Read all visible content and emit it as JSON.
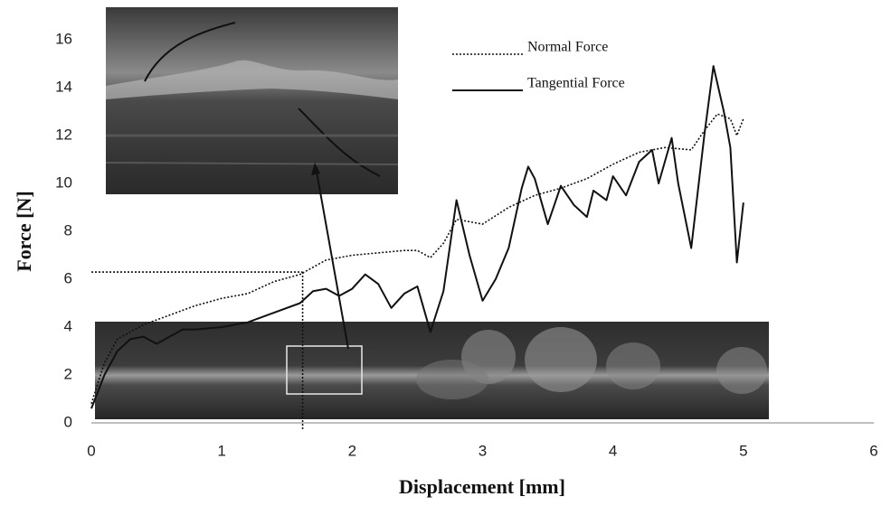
{
  "chart_data": {
    "type": "line",
    "x_label": "Displacement [mm]",
    "y_label": "Force [N]",
    "xlim": [
      0,
      6
    ],
    "ylim": [
      0,
      16
    ],
    "xticks": [
      0,
      1,
      2,
      3,
      4,
      5,
      6
    ],
    "yticks": [
      0,
      2,
      4,
      6,
      8,
      10,
      12,
      14,
      16
    ],
    "legend": "top-right",
    "reference_point": {
      "x": 1.62,
      "y": 6.3
    },
    "series": [
      {
        "name": "Normal Force",
        "color": "#111111",
        "style": "dotted",
        "x": [
          0,
          0.1,
          0.2,
          0.4,
          0.6,
          0.8,
          1.0,
          1.2,
          1.4,
          1.6,
          1.7,
          1.8,
          2.0,
          2.2,
          2.4,
          2.5,
          2.6,
          2.7,
          2.8,
          3.0,
          3.2,
          3.4,
          3.6,
          3.8,
          4.0,
          4.2,
          4.4,
          4.6,
          4.7,
          4.8,
          4.9,
          4.95,
          5.0
        ],
        "values": [
          0.8,
          2.5,
          3.5,
          4.1,
          4.5,
          4.9,
          5.2,
          5.4,
          5.9,
          6.2,
          6.5,
          6.8,
          7.0,
          7.1,
          7.2,
          7.2,
          6.9,
          7.5,
          8.5,
          8.3,
          9.0,
          9.5,
          9.8,
          10.2,
          10.8,
          11.3,
          11.5,
          11.4,
          12.2,
          12.9,
          12.7,
          12.0,
          12.7
        ]
      },
      {
        "name": "Tangential Force",
        "color": "#111111",
        "style": "solid",
        "x": [
          0,
          0.1,
          0.2,
          0.3,
          0.4,
          0.5,
          0.6,
          0.7,
          0.8,
          1.0,
          1.2,
          1.4,
          1.6,
          1.7,
          1.8,
          1.9,
          2.0,
          2.1,
          2.2,
          2.3,
          2.4,
          2.5,
          2.6,
          2.7,
          2.8,
          2.9,
          3.0,
          3.1,
          3.2,
          3.3,
          3.35,
          3.4,
          3.5,
          3.6,
          3.7,
          3.8,
          3.85,
          3.95,
          4.0,
          4.1,
          4.2,
          4.3,
          4.35,
          4.45,
          4.5,
          4.6,
          4.7,
          4.77,
          4.85,
          4.9,
          4.95,
          5.0
        ],
        "values": [
          0.6,
          2.0,
          3.0,
          3.5,
          3.6,
          3.3,
          3.6,
          3.9,
          3.9,
          4.0,
          4.2,
          4.6,
          5.0,
          5.5,
          5.6,
          5.3,
          5.6,
          6.2,
          5.8,
          4.8,
          5.4,
          5.7,
          3.8,
          5.5,
          9.3,
          7.0,
          5.1,
          6.0,
          7.3,
          9.8,
          10.7,
          10.2,
          8.3,
          9.9,
          9.1,
          8.6,
          9.7,
          9.3,
          10.3,
          9.5,
          10.9,
          11.4,
          10.0,
          11.9,
          10.0,
          7.3,
          12.0,
          14.9,
          13.0,
          11.5,
          6.7,
          9.2
        ]
      }
    ]
  }
}
